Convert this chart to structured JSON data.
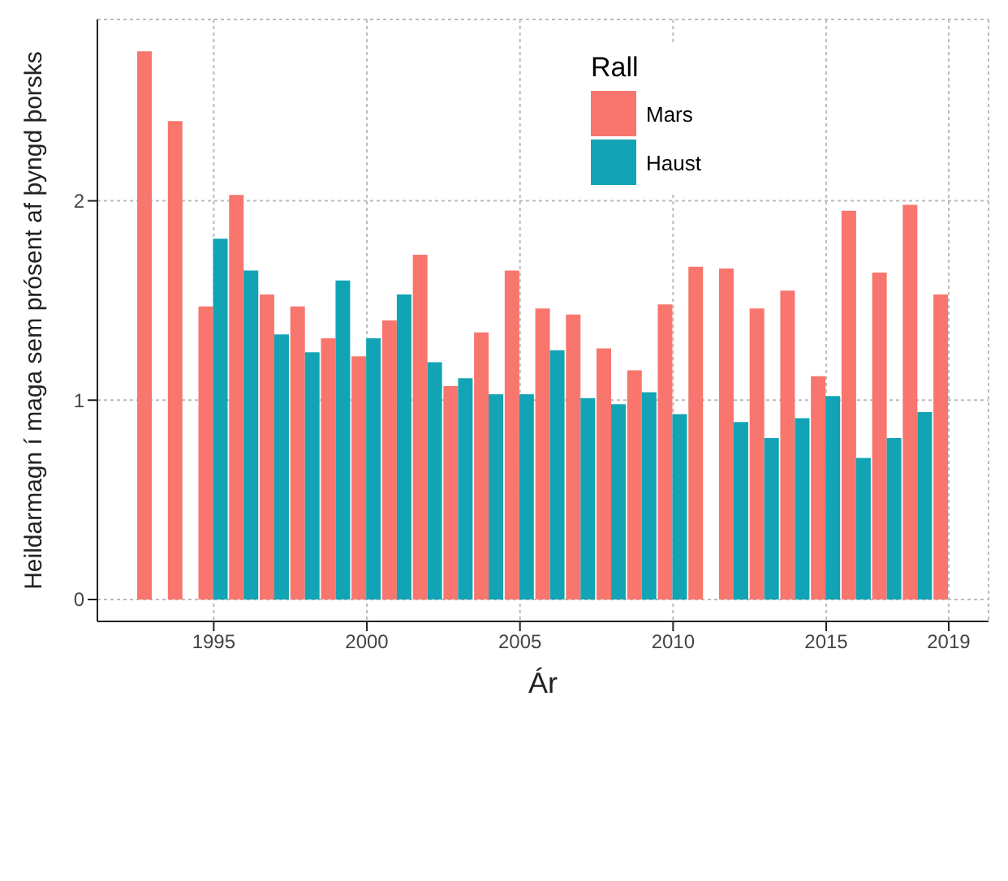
{
  "chart_data": {
    "type": "bar",
    "xlabel": "Ár",
    "ylabel": "Heildarmagn í maga sem prósent af þyngd þorsks",
    "legend_title": "Rall",
    "x": [
      1993,
      1994,
      1995,
      1996,
      1997,
      1998,
      1999,
      2000,
      2001,
      2002,
      2003,
      2004,
      2005,
      2006,
      2007,
      2008,
      2009,
      2010,
      2011,
      2012,
      2013,
      2014,
      2015,
      2016,
      2017,
      2018,
      2019
    ],
    "series": [
      {
        "name": "Mars",
        "color": "#f8766d",
        "values": [
          2.75,
          2.4,
          1.47,
          2.03,
          1.53,
          1.47,
          1.31,
          1.22,
          1.4,
          1.73,
          1.07,
          1.34,
          1.65,
          1.46,
          1.43,
          1.26,
          1.15,
          1.48,
          1.67,
          1.66,
          1.46,
          1.55,
          1.12,
          1.95,
          1.64,
          1.98,
          1.53
        ]
      },
      {
        "name": "Haust",
        "color": "#12a4b4",
        "values": [
          null,
          null,
          1.81,
          1.65,
          1.33,
          1.24,
          1.6,
          1.31,
          1.53,
          1.19,
          1.11,
          1.03,
          1.03,
          1.25,
          1.01,
          0.98,
          1.04,
          0.93,
          null,
          0.89,
          0.81,
          0.91,
          1.02,
          0.71,
          0.81,
          0.94,
          null
        ]
      }
    ],
    "xlim": [
      1991.2,
      2020.3
    ],
    "xticks": [
      1995,
      2000,
      2005,
      2010,
      2015,
      2019
    ],
    "ylim": [
      -0.11,
      2.91
    ],
    "yticks": [
      0,
      1,
      2
    ],
    "grid": true,
    "legend": "top"
  }
}
